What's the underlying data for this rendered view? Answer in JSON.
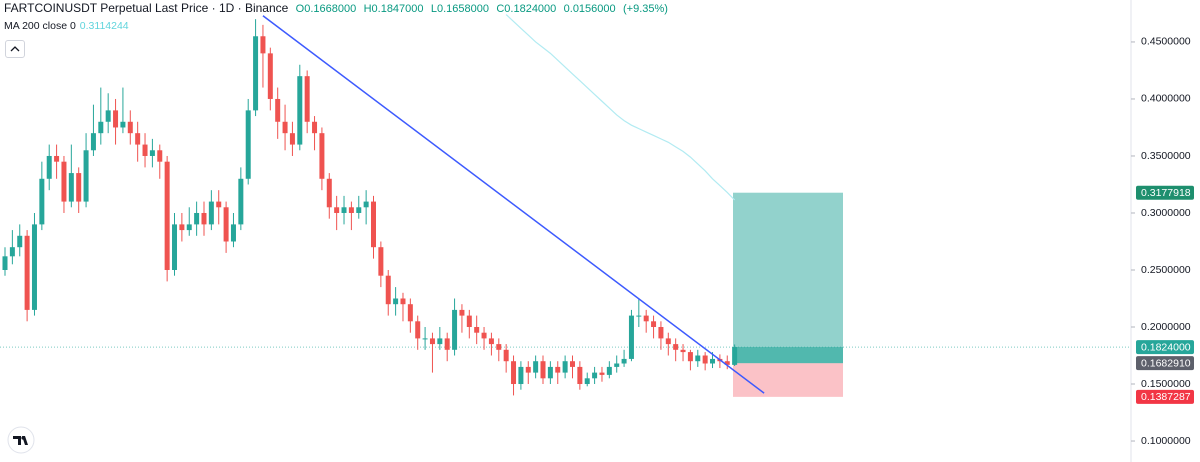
{
  "chart_data": {
    "type": "candlestick",
    "title": "FARTCOINUSDT Perpetual Last Price · 1D · Binance",
    "ohlc_legend": [
      "O0.1668000",
      "H0.1847000",
      "L0.1658000",
      "C0.1824000",
      "0.0156000",
      "(+9.35%)"
    ],
    "up_color": "#26a69a",
    "down_color": "#ef5350",
    "open": [
      0.25,
      0.262,
      0.27,
      0.28,
      0.215,
      0.29,
      0.33,
      0.35,
      0.345,
      0.31,
      0.335,
      0.31,
      0.355,
      0.37,
      0.38,
      0.39,
      0.375,
      0.38,
      0.37,
      0.36,
      0.35,
      0.355,
      0.345,
      0.25,
      0.29,
      0.285,
      0.29,
      0.3,
      0.29,
      0.31,
      0.305,
      0.275,
      0.29,
      0.33,
      0.39,
      0.455,
      0.44,
      0.4,
      0.38,
      0.37,
      0.36,
      0.42,
      0.38,
      0.37,
      0.33,
      0.305,
      0.3,
      0.305,
      0.3,
      0.305,
      0.31,
      0.27,
      0.245,
      0.22,
      0.225,
      0.22,
      0.205,
      0.19,
      0.19,
      0.185,
      0.19,
      0.18,
      0.215,
      0.21,
      0.2,
      0.195,
      0.19,
      0.185,
      0.18,
      0.17,
      0.15,
      0.165,
      0.16,
      0.17,
      0.155,
      0.165,
      0.16,
      0.17,
      0.165,
      0.15,
      0.155,
      0.16,
      0.158,
      0.165,
      0.168,
      0.172,
      0.21,
      0.21,
      0.205,
      0.2,
      0.19,
      0.185,
      0.18,
      0.178,
      0.17,
      0.175,
      0.168,
      0.172,
      0.17,
      0.1668
    ],
    "high": [
      0.27,
      0.285,
      0.29,
      0.285,
      0.3,
      0.345,
      0.36,
      0.36,
      0.35,
      0.36,
      0.34,
      0.37,
      0.395,
      0.41,
      0.405,
      0.4,
      0.41,
      0.39,
      0.38,
      0.37,
      0.365,
      0.36,
      0.35,
      0.3,
      0.3,
      0.305,
      0.31,
      0.31,
      0.32,
      0.32,
      0.31,
      0.3,
      0.34,
      0.4,
      0.47,
      0.465,
      0.445,
      0.41,
      0.395,
      0.38,
      0.43,
      0.425,
      0.385,
      0.375,
      0.335,
      0.315,
      0.315,
      0.31,
      0.315,
      0.32,
      0.315,
      0.275,
      0.25,
      0.235,
      0.23,
      0.225,
      0.21,
      0.2,
      0.195,
      0.2,
      0.195,
      0.225,
      0.22,
      0.215,
      0.21,
      0.2,
      0.195,
      0.19,
      0.185,
      0.175,
      0.17,
      0.17,
      0.175,
      0.175,
      0.17,
      0.17,
      0.175,
      0.175,
      0.17,
      0.16,
      0.165,
      0.165,
      0.17,
      0.175,
      0.18,
      0.215,
      0.225,
      0.215,
      0.21,
      0.205,
      0.195,
      0.19,
      0.185,
      0.18,
      0.18,
      0.178,
      0.178,
      0.176,
      0.175,
      0.1847
    ],
    "low": [
      0.245,
      0.255,
      0.262,
      0.205,
      0.21,
      0.285,
      0.32,
      0.33,
      0.3,
      0.305,
      0.3,
      0.305,
      0.35,
      0.36,
      0.37,
      0.36,
      0.37,
      0.36,
      0.345,
      0.34,
      0.34,
      0.33,
      0.24,
      0.245,
      0.275,
      0.28,
      0.28,
      0.28,
      0.285,
      0.29,
      0.265,
      0.27,
      0.285,
      0.325,
      0.385,
      0.41,
      0.39,
      0.365,
      0.355,
      0.35,
      0.355,
      0.37,
      0.355,
      0.32,
      0.295,
      0.285,
      0.29,
      0.285,
      0.295,
      0.29,
      0.26,
      0.235,
      0.21,
      0.21,
      0.205,
      0.195,
      0.18,
      0.18,
      0.16,
      0.18,
      0.17,
      0.175,
      0.195,
      0.19,
      0.185,
      0.18,
      0.175,
      0.17,
      0.16,
      0.14,
      0.145,
      0.15,
      0.155,
      0.15,
      0.15,
      0.15,
      0.155,
      0.155,
      0.145,
      0.148,
      0.15,
      0.152,
      0.155,
      0.16,
      0.165,
      0.17,
      0.2,
      0.195,
      0.19,
      0.18,
      0.175,
      0.17,
      0.17,
      0.162,
      0.165,
      0.162,
      0.164,
      0.164,
      0.163,
      0.1658
    ],
    "close": [
      0.262,
      0.27,
      0.28,
      0.215,
      0.29,
      0.33,
      0.35,
      0.345,
      0.31,
      0.335,
      0.31,
      0.355,
      0.37,
      0.38,
      0.39,
      0.375,
      0.38,
      0.37,
      0.36,
      0.35,
      0.355,
      0.345,
      0.25,
      0.29,
      0.285,
      0.29,
      0.3,
      0.29,
      0.31,
      0.305,
      0.275,
      0.29,
      0.33,
      0.39,
      0.455,
      0.44,
      0.4,
      0.38,
      0.37,
      0.36,
      0.42,
      0.38,
      0.37,
      0.33,
      0.305,
      0.3,
      0.305,
      0.3,
      0.305,
      0.31,
      0.27,
      0.245,
      0.22,
      0.225,
      0.22,
      0.205,
      0.19,
      0.19,
      0.185,
      0.19,
      0.18,
      0.215,
      0.21,
      0.2,
      0.195,
      0.19,
      0.185,
      0.18,
      0.17,
      0.15,
      0.165,
      0.16,
      0.17,
      0.155,
      0.165,
      0.16,
      0.17,
      0.165,
      0.15,
      0.155,
      0.16,
      0.158,
      0.165,
      0.168,
      0.172,
      0.21,
      0.21,
      0.205,
      0.2,
      0.19,
      0.185,
      0.18,
      0.178,
      0.17,
      0.175,
      0.168,
      0.172,
      0.17,
      0.1668,
      0.1824
    ],
    "ma": {
      "name": "MA 200 close 0",
      "value_label": "0.3114244",
      "color": "#b2ebf2",
      "values": [
        null,
        null,
        null,
        null,
        null,
        null,
        null,
        null,
        null,
        null,
        null,
        null,
        null,
        null,
        null,
        null,
        null,
        null,
        null,
        null,
        null,
        null,
        null,
        null,
        null,
        null,
        null,
        null,
        null,
        null,
        null,
        null,
        null,
        null,
        null,
        null,
        null,
        null,
        null,
        null,
        null,
        null,
        null,
        null,
        null,
        null,
        null,
        null,
        null,
        null,
        null,
        null,
        null,
        null,
        null,
        null,
        null,
        null,
        null,
        null,
        null,
        null,
        null,
        null,
        null,
        null,
        null,
        null,
        0.474,
        0.468,
        0.462,
        0.456,
        0.45,
        0.445,
        0.44,
        0.434,
        0.428,
        0.422,
        0.416,
        0.41,
        0.404,
        0.398,
        0.392,
        0.386,
        0.381,
        0.377,
        0.374,
        0.371,
        0.368,
        0.365,
        0.362,
        0.358,
        0.354,
        0.349,
        0.343,
        0.337,
        0.33,
        0.324,
        0.318,
        0.3114
      ]
    },
    "trendline": {
      "color": "#3d5afe",
      "from": [
        35,
        0.473
      ],
      "to": [
        103,
        0.142
      ]
    },
    "position": {
      "target": {
        "value": 0.3177918,
        "label": "0.3177918"
      },
      "entry": {
        "value": 0.168291,
        "label": "0.1682910"
      },
      "stop": {
        "value": 0.1387287,
        "label": "0.1387287"
      }
    },
    "last_price": {
      "value": 0.1824,
      "label": "0.1824000"
    },
    "ylim": [
      0.0816,
      0.4868
    ],
    "yticks": [
      {
        "value": 0.45,
        "label": "0.4500000"
      },
      {
        "value": 0.4,
        "label": "0.4000000"
      },
      {
        "value": 0.35,
        "label": "0.3500000"
      },
      {
        "value": 0.3,
        "label": "0.3000000"
      },
      {
        "value": 0.25,
        "label": "0.2500000"
      },
      {
        "value": 0.2,
        "label": "0.2000000"
      },
      {
        "value": 0.15,
        "label": "0.1500000"
      },
      {
        "value": 0.1,
        "label": "0.1000000"
      }
    ]
  }
}
